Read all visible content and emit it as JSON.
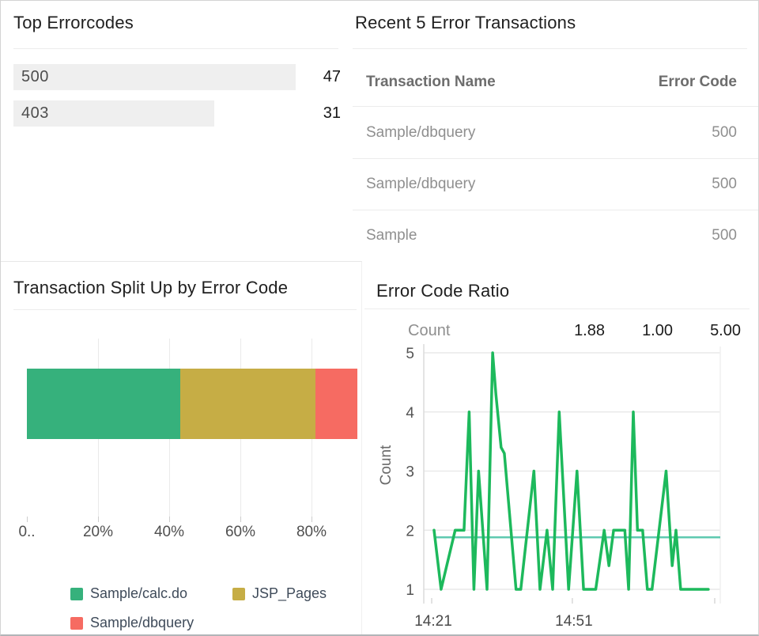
{
  "panels": {
    "top_errorcodes": {
      "title": "Top Errorcodes",
      "chart_data": {
        "type": "bar",
        "orientation": "horizontal",
        "categories": [
          "500",
          "403"
        ],
        "values": [
          47,
          31
        ],
        "bar_color": "#efefef"
      }
    },
    "recent_transactions": {
      "title": "Recent 5 Error Transactions",
      "table": {
        "columns": [
          "Transaction Name",
          "Error Code"
        ],
        "rows": [
          {
            "name": "Sample/dbquery",
            "code": "500"
          },
          {
            "name": "Sample/dbquery",
            "code": "500"
          },
          {
            "name": "Sample",
            "code": "500"
          }
        ]
      }
    },
    "transaction_split": {
      "title": "Transaction Split Up by Error Code",
      "chart_data": {
        "type": "stacked-bar",
        "orientation": "horizontal",
        "x_ticks": [
          "0..",
          "20%",
          "40%",
          "60%",
          "80%"
        ],
        "series": [
          {
            "name": "Sample/calc.do",
            "color": "#36b17c",
            "value_pct": 43
          },
          {
            "name": "JSP_Pages",
            "color": "#c6ad45",
            "value_pct": 38
          },
          {
            "name": "Sample/dbquery",
            "color": "#f66b62",
            "value_pct": 19
          }
        ]
      }
    },
    "error_code_ratio": {
      "title": "Error Code Ratio",
      "stats": {
        "label": "Count",
        "avg": "1.88",
        "min": "1.00",
        "max": "5.00"
      },
      "chart_data": {
        "type": "line",
        "ylabel": "Count",
        "ylim": [
          1,
          5
        ],
        "y_ticks": [
          1,
          2,
          3,
          4,
          5
        ],
        "x_tick_labels": [
          "14:21",
          "14:51"
        ],
        "x_tick_minutes": [
          0,
          30
        ],
        "average_line": 1.88,
        "line_color": "#1db95c",
        "average_line_color": "#5fc9b0",
        "points": [
          [
            0.5,
            2
          ],
          [
            2,
            1
          ],
          [
            5,
            2
          ],
          [
            6.9,
            2
          ],
          [
            8,
            4
          ],
          [
            9,
            1
          ],
          [
            10,
            3
          ],
          [
            11.8,
            1
          ],
          [
            13,
            5
          ],
          [
            13.7,
            4.3
          ],
          [
            14.8,
            3.4
          ],
          [
            15.5,
            3.3
          ],
          [
            18,
            1
          ],
          [
            19,
            1
          ],
          [
            21.8,
            3
          ],
          [
            23.1,
            1
          ],
          [
            24.6,
            2
          ],
          [
            25.8,
            1
          ],
          [
            27.2,
            4
          ],
          [
            29.2,
            1
          ],
          [
            31,
            3
          ],
          [
            32.4,
            1
          ],
          [
            35,
            1
          ],
          [
            36.8,
            2
          ],
          [
            37.8,
            1.4
          ],
          [
            38.8,
            2
          ],
          [
            41.2,
            2
          ],
          [
            42,
            1
          ],
          [
            43,
            4
          ],
          [
            43.9,
            2
          ],
          [
            45,
            2
          ],
          [
            46,
            1
          ],
          [
            47,
            1
          ],
          [
            50,
            3
          ],
          [
            51.3,
            1.4
          ],
          [
            52.1,
            2
          ],
          [
            53.1,
            1
          ],
          [
            59,
            1
          ]
        ]
      }
    }
  }
}
